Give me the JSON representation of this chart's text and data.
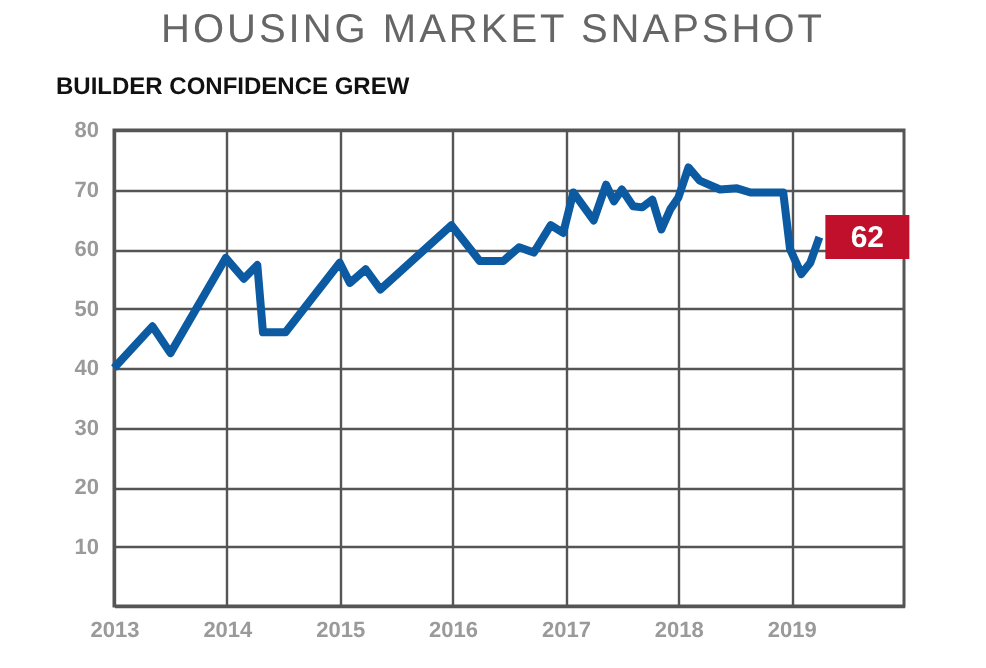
{
  "chart_data": {
    "type": "line",
    "title": "HOUSING MARKET SNAPSHOT",
    "subtitle": "BUILDER CONFIDENCE GREW",
    "x": [
      2013.0,
      2013.34,
      2013.5,
      2013.99,
      2014.15,
      2014.27,
      2014.32,
      2014.52,
      2015.0,
      2015.09,
      2015.23,
      2015.36,
      2015.99,
      2016.24,
      2016.45,
      2016.59,
      2016.72,
      2016.87,
      2016.98,
      2017.07,
      2017.25,
      2017.36,
      2017.43,
      2017.5,
      2017.6,
      2017.68,
      2017.77,
      2017.85,
      2017.93,
      2018.0,
      2018.09,
      2018.19,
      2018.37,
      2018.52,
      2018.64,
      2018.93,
      2018.99,
      2019.09,
      2019.17,
      2019.25
    ],
    "series": [
      {
        "color": "#0b5aa2",
        "values": [
          40,
          47,
          42.5,
          58.5,
          55,
          57.3,
          46,
          46,
          57.7,
          54.3,
          56.6,
          53.2,
          64,
          58,
          58,
          60.3,
          59.4,
          64,
          62.7,
          69.5,
          64.8,
          70.8,
          68,
          70,
          67.2,
          67,
          68.3,
          63.3,
          66.7,
          68.6,
          73.7,
          71.5,
          70,
          70.2,
          69.5,
          69.5,
          60,
          55.8,
          57.7,
          62
        ]
      }
    ],
    "annotations": [
      {
        "text": "62",
        "x": 2019.25,
        "y": 62
      }
    ],
    "xlim": [
      2013,
      2020
    ],
    "xticks": [
      2013,
      2014,
      2015,
      2016,
      2017,
      2018,
      2019
    ],
    "ylim": [
      0,
      80
    ],
    "yticks": [
      {
        "value": 0,
        "label": null
      },
      10,
      20,
      30,
      40,
      50,
      60,
      70,
      80
    ],
    "grid": true,
    "marker": "none",
    "line_style": "solid"
  }
}
